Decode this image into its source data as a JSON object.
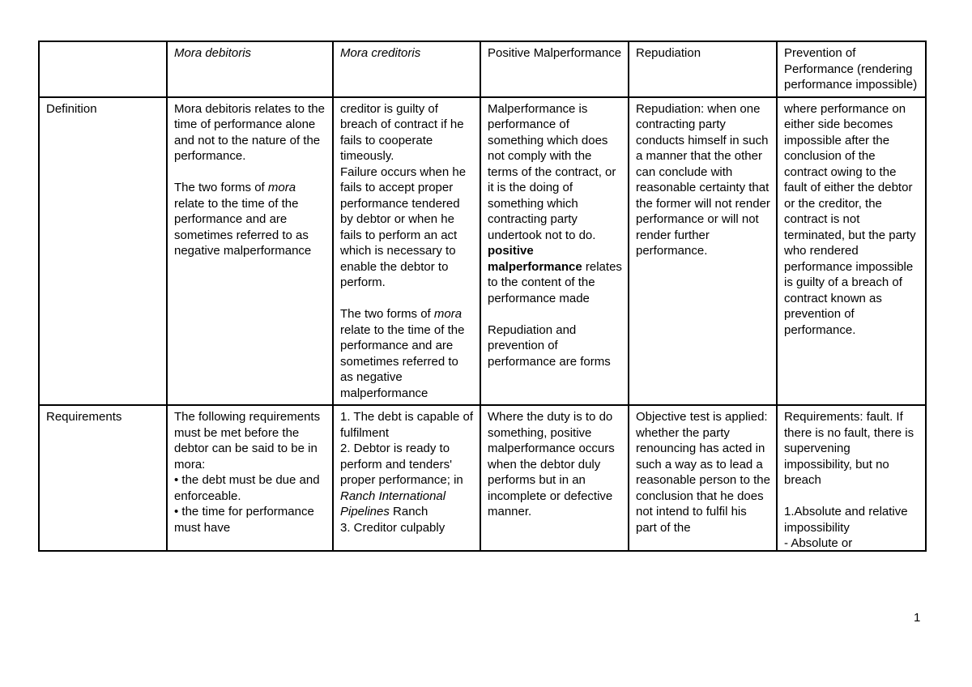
{
  "page": {
    "number": "1"
  },
  "table": {
    "headers": [
      "",
      "Mora debitoris",
      "Mora creditoris",
      "Positive Malperformance",
      "Repudiation",
      "Prevention of Performance (rendering performance impossible)"
    ],
    "rows": [
      {
        "label": "Definition",
        "cells": [
          "Mora debitoris relates to the time of performance alone and not to the nature of the performance.\n\nThe two forms of *mora* relate to the time of the performance and are sometimes referred to as negative malperformance",
          "creditor is guilty of breach of contract if he fails to cooperate timeously.\nFailure occurs when he fails to accept proper performance tendered by debtor or when he fails to perform an act which is necessary to enable the debtor to perform.\n\nThe two forms of *mora* relate to the time of the performance and are sometimes referred to as negative malperformance",
          "Malperformance is performance of something which does not comply with the terms of the contract, or it is the doing of something which contracting party undertook not to do.\n**positive malperformance** relates to the content of the performance made\n\nRepudiation and prevention of performance are forms",
          "Repudiation: when one contracting party conducts himself in such a manner that the other can conclude with reasonable certainty that the former will not render performance or will not render further performance.",
          "where performance on either side becomes impossible after the conclusion of the contract owing to the fault of either the debtor or the creditor, the contract is not terminated, but the party who rendered performance impossible is guilty of a breach of contract known as prevention of performance."
        ]
      },
      {
        "label": "Requirements",
        "cells": [
          "The following requirements must be met before the debtor can be said to be in mora:\n• the debt must be due and enforceable.\n• the time for performance must have",
          "1. The debt is capable of fulfilment\n2. Debtor is ready to perform and tenders' proper performance; in *Ranch International Pipelines* Ranch\n3. Creditor culpably",
          "Where the duty is to do something, positive malperformance occurs when the debtor duly performs but in an incomplete or defective manner.",
          "Objective test is applied: whether the party renouncing has acted in such a way as to lead a reasonable person to the conclusion that he does not intend to fulfil his part of the",
          "Requirements: fault. If there is no fault, there is supervening impossibility, but no breach\n\n1.Absolute and relative impossibility\n- Absolute or"
        ]
      }
    ]
  }
}
